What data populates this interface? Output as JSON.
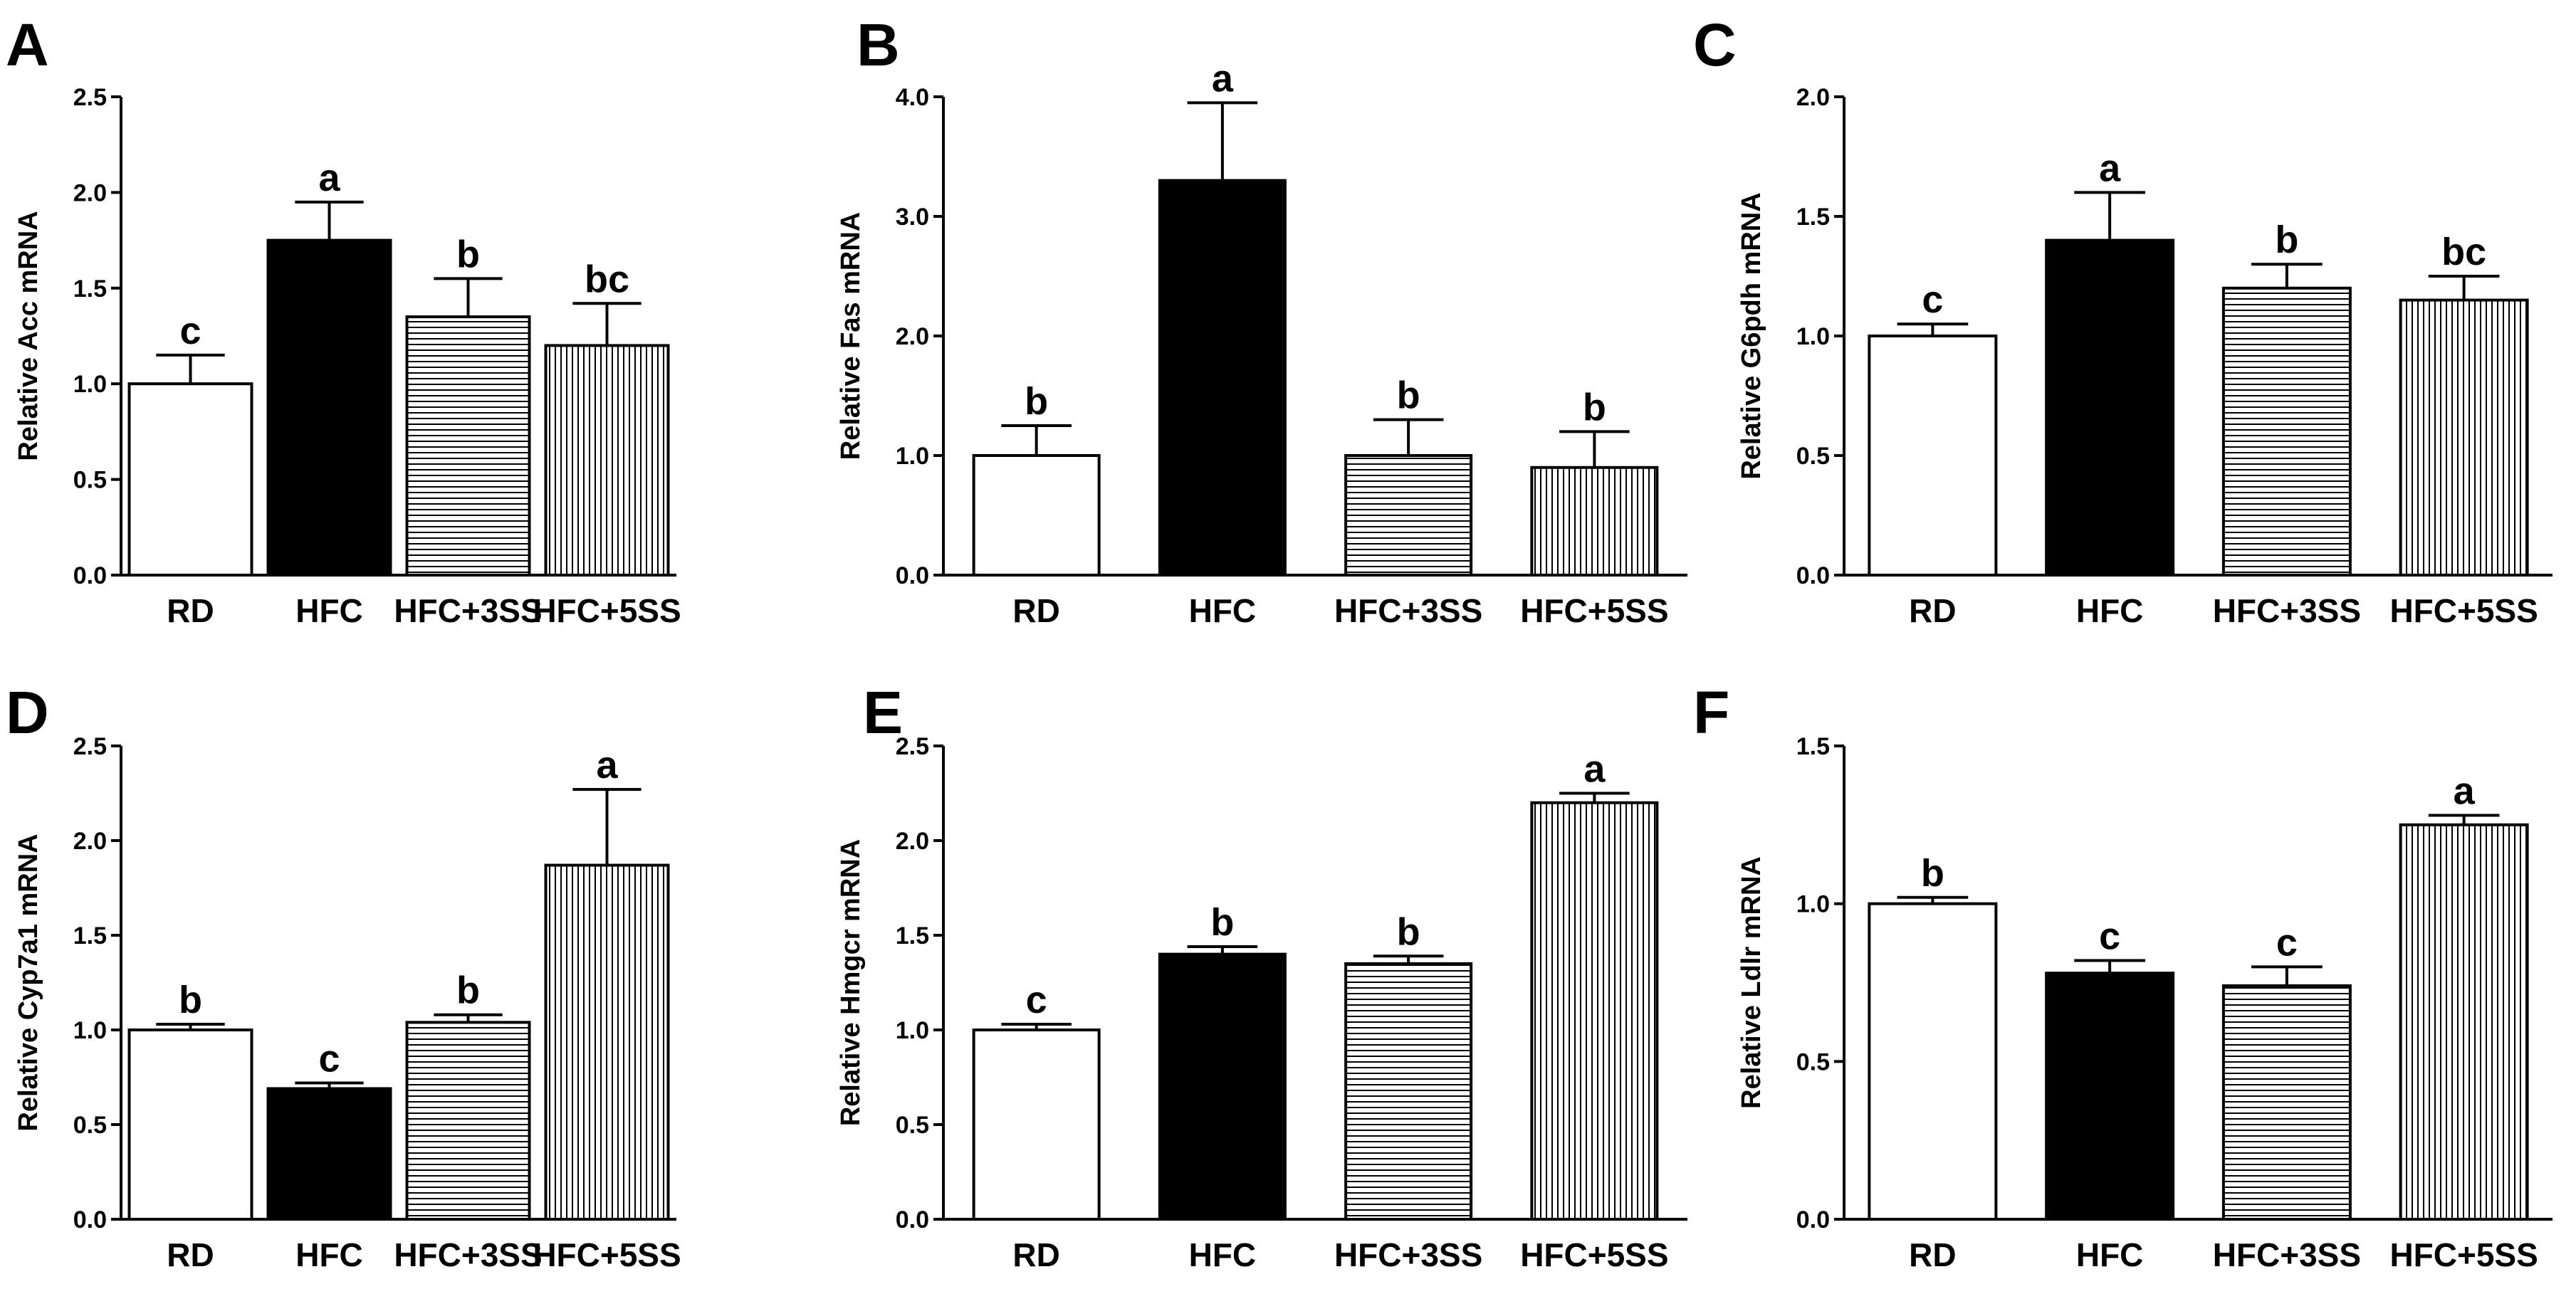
{
  "chart_data": [
    {
      "panel": "A",
      "type": "bar",
      "ylabel": "Relative Acc mRNA",
      "categories": [
        "RD",
        "HFC",
        "HFC+3SS",
        "HFC+5SS"
      ],
      "values": [
        1.0,
        1.75,
        1.35,
        1.2
      ],
      "errors": [
        0.15,
        0.2,
        0.2,
        0.22
      ],
      "significance": [
        "c",
        "a",
        "b",
        "bc"
      ],
      "ylim": [
        0,
        2.5
      ],
      "yticks": [
        "0.0",
        "0.5",
        "1.0",
        "1.5",
        "2.0",
        "2.5"
      ]
    },
    {
      "panel": "B",
      "type": "bar",
      "ylabel": "Relative Fas mRNA",
      "categories": [
        "RD",
        "HFC",
        "HFC+3SS",
        "HFC+5SS"
      ],
      "values": [
        1.0,
        3.3,
        1.0,
        0.9
      ],
      "errors": [
        0.25,
        0.65,
        0.3,
        0.3
      ],
      "significance": [
        "b",
        "a",
        "b",
        "b"
      ],
      "ylim": [
        0,
        4.0
      ],
      "yticks": [
        "0.0",
        "1.0",
        "2.0",
        "3.0",
        "4.0"
      ]
    },
    {
      "panel": "C",
      "type": "bar",
      "ylabel": "Relative G6pdh mRNA",
      "categories": [
        "RD",
        "HFC",
        "HFC+3SS",
        "HFC+5SS"
      ],
      "values": [
        1.0,
        1.4,
        1.2,
        1.15
      ],
      "errors": [
        0.05,
        0.2,
        0.1,
        0.1
      ],
      "significance": [
        "c",
        "a",
        "b",
        "bc"
      ],
      "ylim": [
        0,
        2.0
      ],
      "yticks": [
        "0.0",
        "0.5",
        "1.0",
        "1.5",
        "2.0"
      ]
    },
    {
      "panel": "D",
      "type": "bar",
      "ylabel": "Relative Cyp7a1 mRNA",
      "categories": [
        "RD",
        "HFC",
        "HFC+3SS",
        "HFC+5SS"
      ],
      "values": [
        1.0,
        0.69,
        1.04,
        1.87
      ],
      "errors": [
        0.03,
        0.03,
        0.04,
        0.4
      ],
      "significance": [
        "b",
        "c",
        "b",
        "a"
      ],
      "ylim": [
        0,
        2.5
      ],
      "yticks": [
        "0.0",
        "0.5",
        "1.0",
        "1.5",
        "2.0",
        "2.5"
      ]
    },
    {
      "panel": "E",
      "type": "bar",
      "ylabel": "Relative Hmgcr mRNA",
      "categories": [
        "RD",
        "HFC",
        "HFC+3SS",
        "HFC+5SS"
      ],
      "values": [
        1.0,
        1.4,
        1.35,
        2.2
      ],
      "errors": [
        0.03,
        0.04,
        0.04,
        0.05
      ],
      "significance": [
        "c",
        "b",
        "b",
        "a"
      ],
      "ylim": [
        0,
        2.5
      ],
      "yticks": [
        "0.0",
        "0.5",
        "1.0",
        "1.5",
        "2.0",
        "2.5"
      ]
    },
    {
      "panel": "F",
      "type": "bar",
      "ylabel": "Relative Ldlr mRNA",
      "categories": [
        "RD",
        "HFC",
        "HFC+3SS",
        "HFC+5SS"
      ],
      "values": [
        1.0,
        0.78,
        0.74,
        1.25
      ],
      "errors": [
        0.02,
        0.04,
        0.06,
        0.03
      ],
      "significance": [
        "b",
        "c",
        "c",
        "a"
      ],
      "ylim": [
        0,
        1.5
      ],
      "yticks": [
        "0.0",
        "0.5",
        "1.0",
        "1.5"
      ]
    }
  ],
  "colors": {
    "axis": "#000000",
    "rd_fill": "#ffffff",
    "hfc_fill": "#000000",
    "pattern_line": "#000000"
  },
  "bar_styles": [
    "white",
    "black",
    "horizontal-stripes",
    "vertical-stripes"
  ]
}
